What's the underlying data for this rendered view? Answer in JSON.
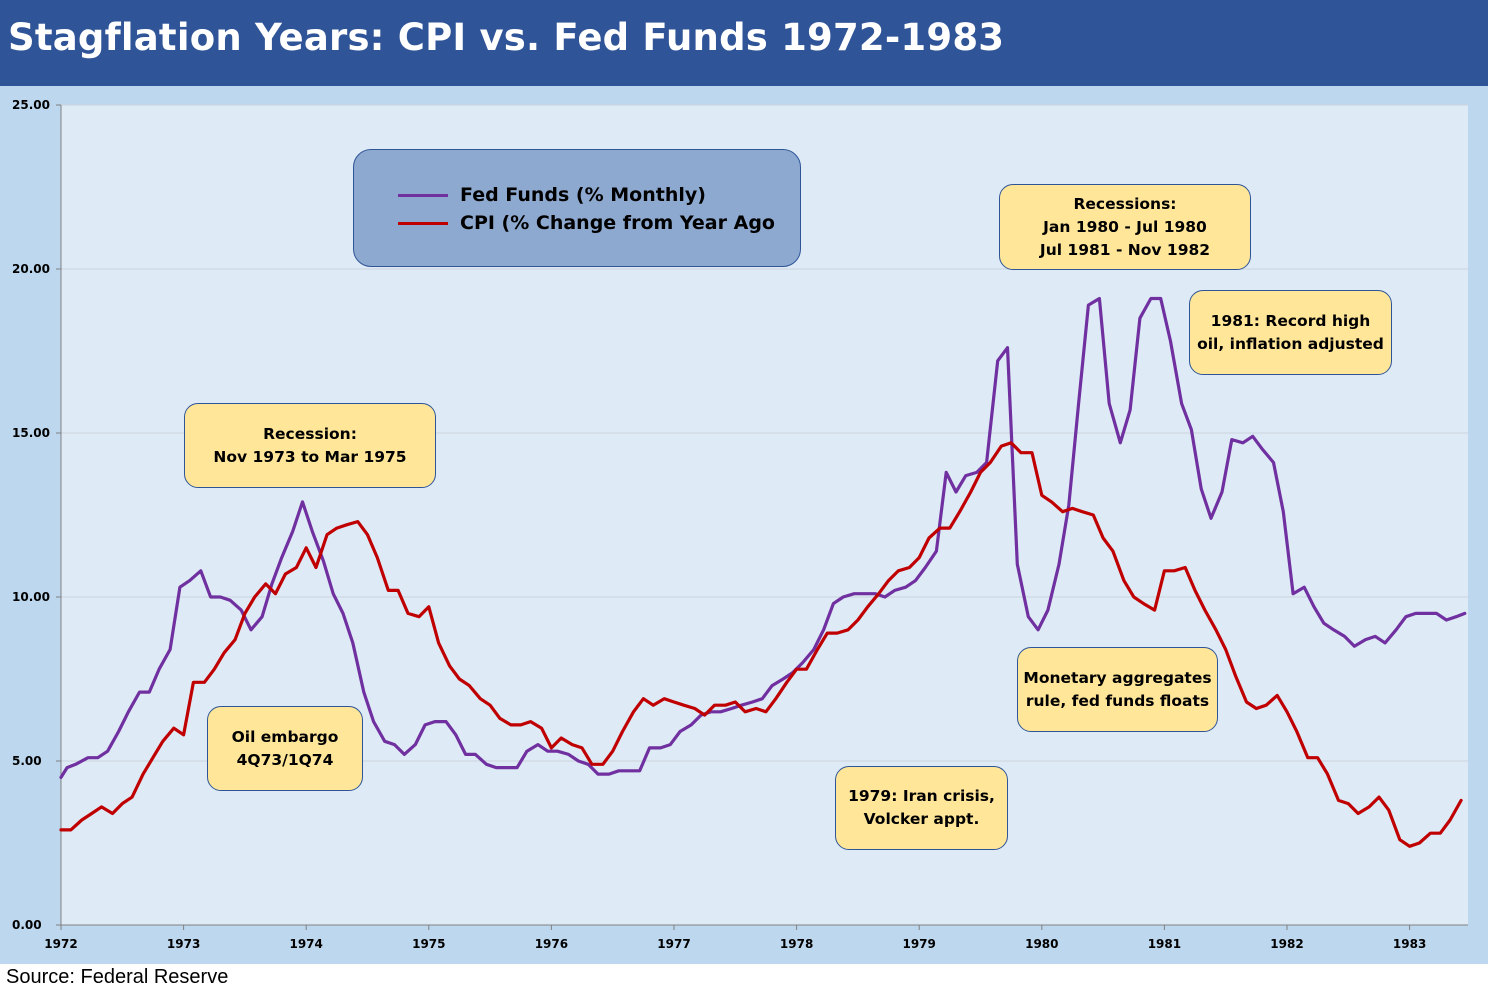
{
  "header": {
    "title": "Stagflation Years: CPI vs. Fed Funds 1972-1983"
  },
  "footer": {
    "source": "Source: Federal Reserve"
  },
  "colors": {
    "header_bg": "#2f5497",
    "frame": "#bdd7ee",
    "plot_bg": "#deebf7",
    "fed_funds": "#7030a0",
    "cpi": "#c00000",
    "annotation_bg": "#ffe699",
    "legend_bg": "#8ea9d0"
  },
  "annotations": [
    {
      "id": "recession-1973",
      "lines": [
        "Recession:",
        "Nov 1973 to Mar 1975"
      ]
    },
    {
      "id": "oil-embargo",
      "lines": [
        "Oil embargo",
        "4Q73/1Q74"
      ]
    },
    {
      "id": "iran-crisis",
      "lines": [
        "1979: Iran crisis,",
        "Volcker appt."
      ]
    },
    {
      "id": "recessions-1980",
      "lines": [
        "Recessions:",
        "Jan 1980 - Jul 1980",
        "Jul 1981 - Nov 1982"
      ]
    },
    {
      "id": "record-oil",
      "lines": [
        "1981: Record high",
        "oil, inflation adjusted"
      ]
    },
    {
      "id": "monetary-aggregates",
      "lines": [
        "Monetary aggregates",
        "rule, fed funds floats"
      ]
    }
  ],
  "chart_data": {
    "type": "line",
    "title": "Stagflation Years: CPI vs. Fed Funds 1972-1983",
    "xlabel": "",
    "ylabel": "",
    "x_range": [
      1972,
      1983.5
    ],
    "ylim": [
      0,
      25
    ],
    "y_ticks": [
      "0.00",
      "5.00",
      "10.00",
      "15.00",
      "20.00",
      "25.00"
    ],
    "y_tick_values": [
      0,
      5,
      10,
      15,
      20,
      25
    ],
    "x_ticks": [
      "1972",
      "1973",
      "1974",
      "1975",
      "1976",
      "1977",
      "1978",
      "1979",
      "1980",
      "1981",
      "1982",
      "1983"
    ],
    "x_tick_values": [
      1972,
      1973,
      1974,
      1975,
      1976,
      1977,
      1978,
      1979,
      1980,
      1981,
      1982,
      1983
    ],
    "grid": "horizontal",
    "legend": "top-left",
    "series": [
      {
        "name": "Fed Funds (% Monthly)",
        "color": "#7030a0",
        "points": [
          [
            1972.0,
            4.5
          ],
          [
            1972.05,
            4.8
          ],
          [
            1972.12,
            4.9
          ],
          [
            1972.22,
            5.1
          ],
          [
            1972.3,
            5.1
          ],
          [
            1972.38,
            5.3
          ],
          [
            1972.47,
            5.9
          ],
          [
            1972.55,
            6.5
          ],
          [
            1972.64,
            7.1
          ],
          [
            1972.72,
            7.1
          ],
          [
            1972.8,
            7.8
          ],
          [
            1972.89,
            8.4
          ],
          [
            1972.97,
            10.3
          ],
          [
            1973.05,
            10.5
          ],
          [
            1973.14,
            10.8
          ],
          [
            1973.22,
            10.0
          ],
          [
            1973.3,
            10.0
          ],
          [
            1973.38,
            9.9
          ],
          [
            1973.47,
            9.6
          ],
          [
            1973.55,
            9.0
          ],
          [
            1973.64,
            9.4
          ],
          [
            1973.72,
            10.4
          ],
          [
            1973.8,
            11.2
          ],
          [
            1973.89,
            12.0
          ],
          [
            1973.97,
            12.9
          ],
          [
            1974.05,
            12.0
          ],
          [
            1974.14,
            11.1
          ],
          [
            1974.22,
            10.1
          ],
          [
            1974.3,
            9.5
          ],
          [
            1974.38,
            8.6
          ],
          [
            1974.47,
            7.1
          ],
          [
            1974.55,
            6.2
          ],
          [
            1974.64,
            5.6
          ],
          [
            1974.72,
            5.5
          ],
          [
            1974.8,
            5.2
          ],
          [
            1974.89,
            5.5
          ],
          [
            1974.97,
            6.1
          ],
          [
            1975.05,
            6.2
          ],
          [
            1975.14,
            6.2
          ],
          [
            1975.22,
            5.8
          ],
          [
            1975.3,
            5.2
          ],
          [
            1975.38,
            5.2
          ],
          [
            1975.47,
            4.9
          ],
          [
            1975.55,
            4.8
          ],
          [
            1975.64,
            4.8
          ],
          [
            1975.72,
            4.8
          ],
          [
            1975.8,
            5.3
          ],
          [
            1975.89,
            5.5
          ],
          [
            1975.97,
            5.3
          ],
          [
            1976.05,
            5.3
          ],
          [
            1976.14,
            5.2
          ],
          [
            1976.22,
            5.0
          ],
          [
            1976.3,
            4.9
          ],
          [
            1976.38,
            4.6
          ],
          [
            1976.47,
            4.6
          ],
          [
            1976.55,
            4.7
          ],
          [
            1976.64,
            4.7
          ],
          [
            1976.72,
            4.7
          ],
          [
            1976.8,
            5.4
          ],
          [
            1976.89,
            5.4
          ],
          [
            1976.97,
            5.5
          ],
          [
            1977.05,
            5.9
          ],
          [
            1977.14,
            6.1
          ],
          [
            1977.22,
            6.4
          ],
          [
            1977.3,
            6.5
          ],
          [
            1977.38,
            6.5
          ],
          [
            1977.47,
            6.6
          ],
          [
            1977.55,
            6.7
          ],
          [
            1977.64,
            6.8
          ],
          [
            1977.72,
            6.9
          ],
          [
            1977.8,
            7.3
          ],
          [
            1977.89,
            7.5
          ],
          [
            1977.97,
            7.7
          ],
          [
            1978.05,
            8.0
          ],
          [
            1978.14,
            8.4
          ],
          [
            1978.22,
            9.0
          ],
          [
            1978.3,
            9.8
          ],
          [
            1978.38,
            10.0
          ],
          [
            1978.47,
            10.1
          ],
          [
            1978.55,
            10.1
          ],
          [
            1978.64,
            10.1
          ],
          [
            1978.72,
            10.0
          ],
          [
            1978.8,
            10.2
          ],
          [
            1978.89,
            10.3
          ],
          [
            1978.97,
            10.5
          ],
          [
            1979.05,
            10.9
          ],
          [
            1979.14,
            11.4
          ],
          [
            1979.22,
            13.8
          ],
          [
            1979.3,
            13.2
          ],
          [
            1979.38,
            13.7
          ],
          [
            1979.47,
            13.8
          ],
          [
            1979.55,
            14.1
          ],
          [
            1979.64,
            17.2
          ],
          [
            1979.72,
            17.6
          ],
          [
            1979.8,
            11.0
          ],
          [
            1979.89,
            9.4
          ],
          [
            1979.97,
            9.0
          ],
          [
            1980.05,
            9.6
          ],
          [
            1980.14,
            11.0
          ],
          [
            1980.22,
            12.8
          ],
          [
            1980.3,
            15.9
          ],
          [
            1980.38,
            18.9
          ],
          [
            1980.47,
            19.1
          ],
          [
            1980.55,
            15.9
          ],
          [
            1980.64,
            14.7
          ],
          [
            1980.72,
            15.7
          ],
          [
            1980.8,
            18.5
          ],
          [
            1980.89,
            19.1
          ],
          [
            1980.97,
            19.1
          ],
          [
            1981.05,
            17.8
          ],
          [
            1981.14,
            15.9
          ],
          [
            1981.22,
            15.1
          ],
          [
            1981.3,
            13.3
          ],
          [
            1981.38,
            12.4
          ],
          [
            1981.47,
            13.2
          ],
          [
            1981.55,
            14.8
          ],
          [
            1981.64,
            14.7
          ],
          [
            1981.72,
            14.9
          ],
          [
            1981.8,
            14.5
          ],
          [
            1981.89,
            14.1
          ],
          [
            1981.97,
            12.6
          ],
          [
            1982.05,
            10.1
          ],
          [
            1982.14,
            10.3
          ],
          [
            1982.22,
            9.7
          ],
          [
            1982.3,
            9.2
          ],
          [
            1982.38,
            9.0
          ],
          [
            1982.47,
            8.8
          ],
          [
            1982.55,
            8.5
          ],
          [
            1982.64,
            8.7
          ],
          [
            1982.72,
            8.8
          ],
          [
            1982.8,
            8.6
          ],
          [
            1982.89,
            9.0
          ],
          [
            1982.97,
            9.4
          ],
          [
            1983.05,
            9.5
          ],
          [
            1983.14,
            9.5
          ],
          [
            1983.22,
            9.5
          ],
          [
            1983.3,
            9.3
          ],
          [
            1983.38,
            9.4
          ],
          [
            1983.45,
            9.5
          ]
        ]
      },
      {
        "name": "CPI (% Change from Year Ago",
        "color": "#c00000",
        "points": [
          [
            1972.0,
            2.9
          ],
          [
            1972.08,
            2.9
          ],
          [
            1972.17,
            3.2
          ],
          [
            1972.25,
            3.4
          ],
          [
            1972.33,
            3.6
          ],
          [
            1972.42,
            3.4
          ],
          [
            1972.5,
            3.7
          ],
          [
            1972.58,
            3.9
          ],
          [
            1972.67,
            4.6
          ],
          [
            1972.75,
            5.1
          ],
          [
            1972.83,
            5.6
          ],
          [
            1972.92,
            6.0
          ],
          [
            1973.0,
            5.8
          ],
          [
            1973.08,
            7.4
          ],
          [
            1973.17,
            7.4
          ],
          [
            1973.25,
            7.8
          ],
          [
            1973.33,
            8.3
          ],
          [
            1973.42,
            8.7
          ],
          [
            1973.5,
            9.5
          ],
          [
            1973.58,
            10.0
          ],
          [
            1973.67,
            10.4
          ],
          [
            1973.75,
            10.1
          ],
          [
            1973.83,
            10.7
          ],
          [
            1973.92,
            10.9
          ],
          [
            1974.0,
            11.5
          ],
          [
            1974.08,
            10.9
          ],
          [
            1974.17,
            11.9
          ],
          [
            1974.25,
            12.1
          ],
          [
            1974.33,
            12.2
          ],
          [
            1974.42,
            12.3
          ],
          [
            1974.5,
            11.9
          ],
          [
            1974.58,
            11.2
          ],
          [
            1974.67,
            10.2
          ],
          [
            1974.75,
            10.2
          ],
          [
            1974.83,
            9.5
          ],
          [
            1974.92,
            9.4
          ],
          [
            1975.0,
            9.7
          ],
          [
            1975.08,
            8.6
          ],
          [
            1975.17,
            7.9
          ],
          [
            1975.25,
            7.5
          ],
          [
            1975.33,
            7.3
          ],
          [
            1975.42,
            6.9
          ],
          [
            1975.5,
            6.7
          ],
          [
            1975.58,
            6.3
          ],
          [
            1975.67,
            6.1
          ],
          [
            1975.75,
            6.1
          ],
          [
            1975.83,
            6.2
          ],
          [
            1975.92,
            6.0
          ],
          [
            1976.0,
            5.4
          ],
          [
            1976.08,
            5.7
          ],
          [
            1976.17,
            5.5
          ],
          [
            1976.25,
            5.4
          ],
          [
            1976.33,
            4.9
          ],
          [
            1976.42,
            4.9
          ],
          [
            1976.5,
            5.3
          ],
          [
            1976.58,
            5.9
          ],
          [
            1976.67,
            6.5
          ],
          [
            1976.75,
            6.9
          ],
          [
            1976.83,
            6.7
          ],
          [
            1976.92,
            6.9
          ],
          [
            1977.0,
            6.8
          ],
          [
            1977.08,
            6.7
          ],
          [
            1977.17,
            6.6
          ],
          [
            1977.25,
            6.4
          ],
          [
            1977.33,
            6.7
          ],
          [
            1977.42,
            6.7
          ],
          [
            1977.5,
            6.8
          ],
          [
            1977.58,
            6.5
          ],
          [
            1977.67,
            6.6
          ],
          [
            1977.75,
            6.5
          ],
          [
            1977.83,
            6.9
          ],
          [
            1977.92,
            7.4
          ],
          [
            1978.0,
            7.8
          ],
          [
            1978.08,
            7.8
          ],
          [
            1978.17,
            8.4
          ],
          [
            1978.25,
            8.9
          ],
          [
            1978.33,
            8.9
          ],
          [
            1978.42,
            9.0
          ],
          [
            1978.5,
            9.3
          ],
          [
            1978.58,
            9.7
          ],
          [
            1978.67,
            10.1
          ],
          [
            1978.75,
            10.5
          ],
          [
            1978.83,
            10.8
          ],
          [
            1978.92,
            10.9
          ],
          [
            1979.0,
            11.2
          ],
          [
            1979.08,
            11.8
          ],
          [
            1979.17,
            12.1
          ],
          [
            1979.25,
            12.1
          ],
          [
            1979.33,
            12.6
          ],
          [
            1979.42,
            13.2
          ],
          [
            1979.5,
            13.8
          ],
          [
            1979.58,
            14.1
          ],
          [
            1979.67,
            14.6
          ],
          [
            1979.75,
            14.7
          ],
          [
            1979.83,
            14.4
          ],
          [
            1979.92,
            14.4
          ],
          [
            1980.0,
            13.1
          ],
          [
            1980.08,
            12.9
          ],
          [
            1980.17,
            12.6
          ],
          [
            1980.25,
            12.7
          ],
          [
            1980.33,
            12.6
          ],
          [
            1980.42,
            12.5
          ],
          [
            1980.5,
            11.8
          ],
          [
            1980.58,
            11.4
          ],
          [
            1980.67,
            10.5
          ],
          [
            1980.75,
            10.0
          ],
          [
            1980.83,
            9.8
          ],
          [
            1980.92,
            9.6
          ],
          [
            1981.0,
            10.8
          ],
          [
            1981.08,
            10.8
          ],
          [
            1981.17,
            10.9
          ],
          [
            1981.25,
            10.2
          ],
          [
            1981.33,
            9.6
          ],
          [
            1981.42,
            9.0
          ],
          [
            1981.5,
            8.4
          ],
          [
            1981.58,
            7.6
          ],
          [
            1981.67,
            6.8
          ],
          [
            1981.75,
            6.6
          ],
          [
            1981.83,
            6.7
          ],
          [
            1981.92,
            7.0
          ],
          [
            1982.0,
            6.5
          ],
          [
            1982.08,
            5.9
          ],
          [
            1982.17,
            5.1
          ],
          [
            1982.25,
            5.1
          ],
          [
            1982.33,
            4.6
          ],
          [
            1982.42,
            3.8
          ],
          [
            1982.5,
            3.7
          ],
          [
            1982.58,
            3.4
          ],
          [
            1982.67,
            3.6
          ],
          [
            1982.75,
            3.9
          ],
          [
            1982.83,
            3.5
          ],
          [
            1982.92,
            2.6
          ],
          [
            1983.0,
            2.4
          ],
          [
            1983.08,
            2.5
          ],
          [
            1983.17,
            2.8
          ],
          [
            1983.25,
            2.8
          ],
          [
            1983.33,
            3.2
          ],
          [
            1983.42,
            3.8
          ]
        ]
      }
    ]
  }
}
